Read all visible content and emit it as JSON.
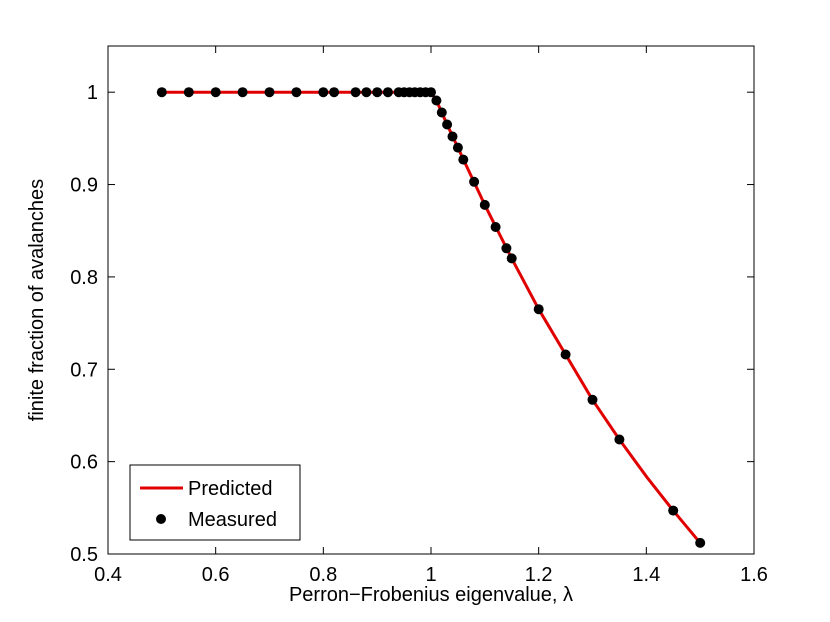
{
  "chart_data": {
    "type": "line",
    "xlabel": "Perron−Frobenius eigenvalue, λ",
    "ylabel": "finite fraction of avalanches",
    "xlim": [
      0.4,
      1.6
    ],
    "ylim": [
      0.5,
      1.05
    ],
    "xticks": [
      0.4,
      0.6,
      0.8,
      1.0,
      1.2,
      1.4,
      1.6
    ],
    "xtick_labels": [
      "0.4",
      "0.6",
      "0.8",
      "1",
      "1.2",
      "1.4",
      "1.6"
    ],
    "yticks": [
      0.5,
      0.6,
      0.7,
      0.8,
      0.9,
      1.0
    ],
    "ytick_labels": [
      "0.5",
      "0.6",
      "0.7",
      "0.8",
      "0.9",
      "1"
    ],
    "grid": false,
    "legend_position": "bottom-left",
    "series": [
      {
        "name": "Predicted",
        "style": "line",
        "color": "#e00000",
        "x": [
          0.5,
          1.0,
          1.01,
          1.02,
          1.03,
          1.05,
          1.07,
          1.1,
          1.15,
          1.2,
          1.25,
          1.3,
          1.35,
          1.4,
          1.45,
          1.5
        ],
        "y": [
          1.0,
          1.0,
          0.991,
          0.978,
          0.965,
          0.94,
          0.915,
          0.878,
          0.82,
          0.765,
          0.716,
          0.667,
          0.624,
          0.584,
          0.547,
          0.512
        ]
      },
      {
        "name": "Measured",
        "style": "markers",
        "color": "#000000",
        "x": [
          0.5,
          0.55,
          0.6,
          0.65,
          0.7,
          0.75,
          0.8,
          0.82,
          0.86,
          0.88,
          0.9,
          0.92,
          0.94,
          0.95,
          0.96,
          0.97,
          0.98,
          0.99,
          1.0,
          1.01,
          1.02,
          1.03,
          1.04,
          1.05,
          1.06,
          1.08,
          1.1,
          1.12,
          1.14,
          1.15,
          1.2,
          1.25,
          1.3,
          1.35,
          1.45,
          1.5
        ],
        "y": [
          1.0,
          1.0,
          1.0,
          1.0,
          1.0,
          1.0,
          1.0,
          1.0,
          1.0,
          1.0,
          1.0,
          1.0,
          1.0,
          1.0,
          1.0,
          1.0,
          1.0,
          1.0,
          1.0,
          0.991,
          0.978,
          0.965,
          0.952,
          0.94,
          0.927,
          0.903,
          0.878,
          0.854,
          0.831,
          0.82,
          0.765,
          0.716,
          0.667,
          0.624,
          0.547,
          0.512
        ]
      }
    ]
  }
}
